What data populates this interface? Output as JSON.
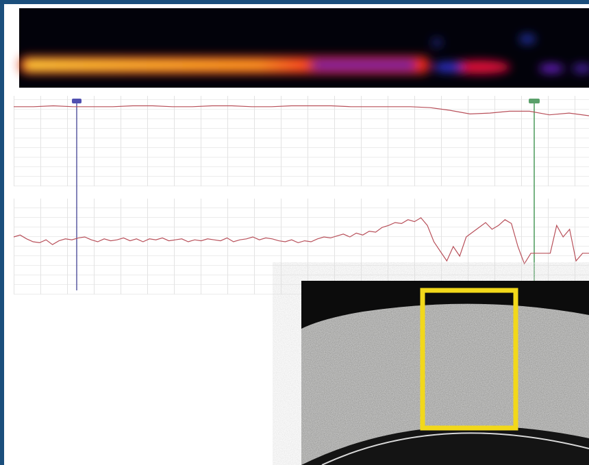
{
  "plots": [
    {
      "ylim": [
        0,
        100
      ],
      "values": [
        88,
        88,
        89,
        88,
        88,
        88,
        89,
        89,
        88,
        88,
        89,
        89,
        88,
        88,
        89,
        89,
        89,
        88,
        88,
        88,
        88,
        87,
        84,
        80,
        81,
        83,
        83,
        79,
        81,
        78
      ]
    },
    {
      "ylim": [
        0,
        100
      ],
      "values": [
        60,
        62,
        58,
        55,
        54,
        57,
        52,
        56,
        58,
        57,
        59,
        60,
        57,
        55,
        58,
        56,
        57,
        59,
        56,
        58,
        55,
        58,
        57,
        59,
        56,
        57,
        58,
        55,
        57,
        56,
        58,
        57,
        56,
        59,
        55,
        57,
        58,
        60,
        57,
        59,
        58,
        56,
        55,
        57,
        54,
        56,
        55,
        58,
        60,
        59,
        61,
        63,
        60,
        64,
        62,
        66,
        65,
        70,
        72,
        75,
        74,
        78,
        76,
        80,
        72,
        55,
        45,
        35,
        50,
        40,
        60,
        65,
        70,
        75,
        68,
        72,
        78,
        74,
        50,
        32,
        43,
        43,
        43,
        43,
        72,
        60,
        68,
        35,
        43,
        43
      ]
    }
  ]
}
